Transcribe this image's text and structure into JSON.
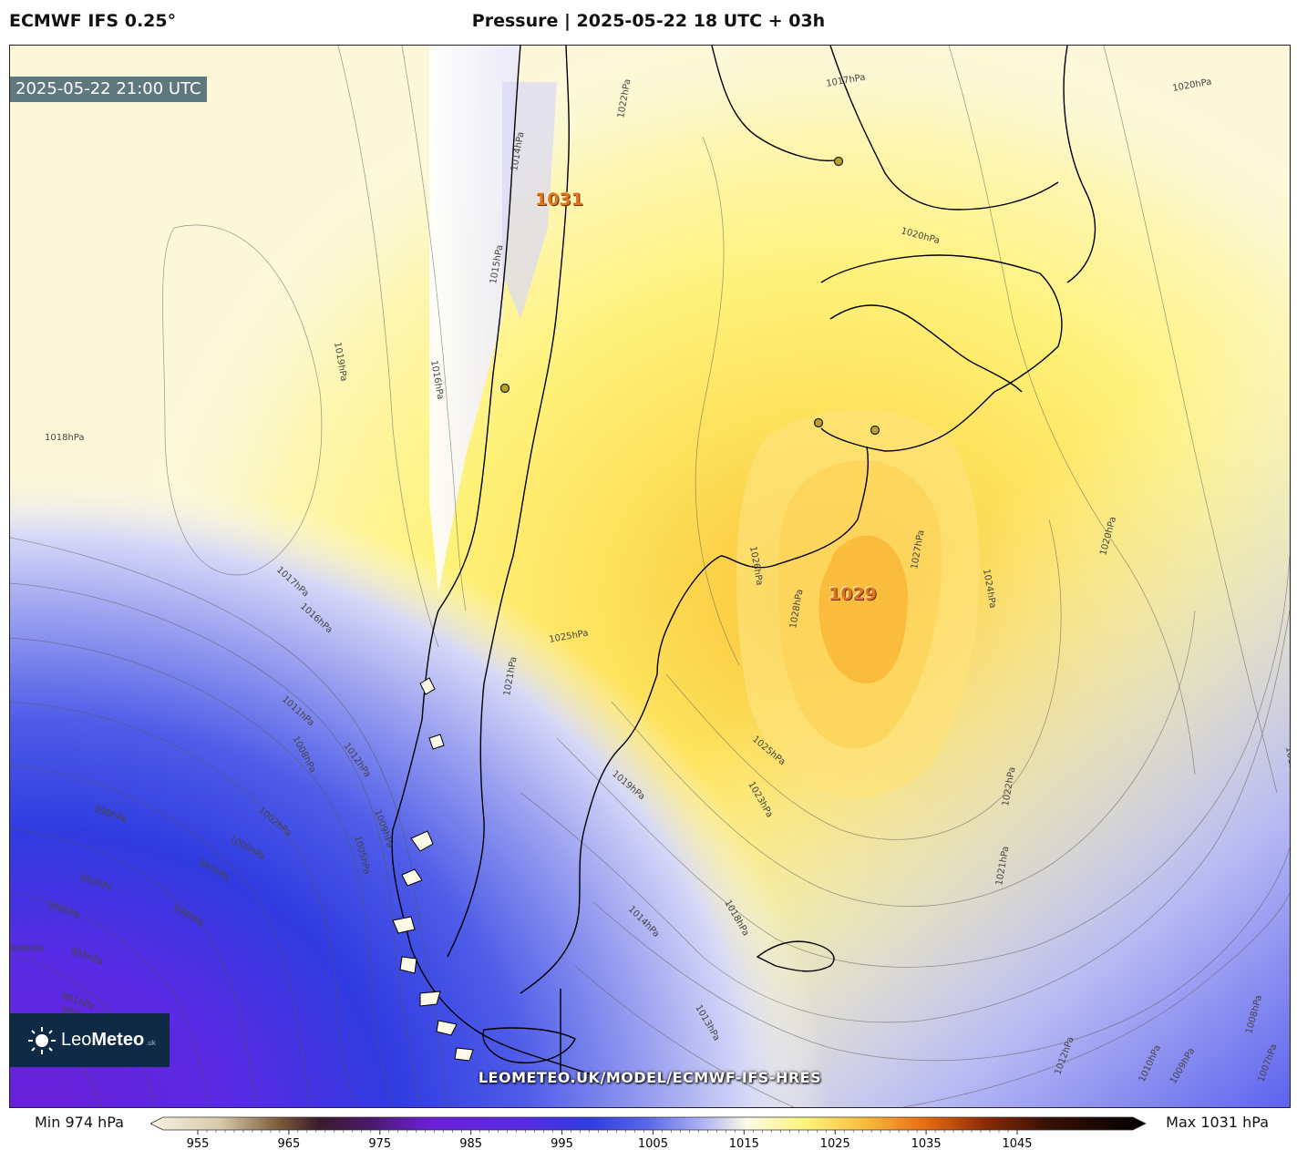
{
  "header": {
    "model": "ECMWF IFS 0.25°",
    "title": "Pressure | 2025-05-22 18 UTC + 03h"
  },
  "map": {
    "valid_time": "2025-05-22 21:00 UTC",
    "watermark": "LEOMETEO.UK/MODEL/ECMWF-IFS-HRES",
    "logo": {
      "name_regular": "Leo",
      "name_bold": "Meteo",
      "suffix": ".uk"
    },
    "high_center_label": "1029",
    "andes_max_label": "1031",
    "isobar_labels": [
      "1018hPa",
      "1019hPa",
      "1016hPa",
      "1017hPa",
      "1016hPa",
      "1015hPa",
      "1014hPa",
      "1011hPa",
      "1012hPa",
      "1008hPa",
      "1009hPa",
      "1005hPa",
      "1002hPa",
      "1000hPa",
      "998hPa",
      "997hPa",
      "994hPa",
      "992hPa",
      "988hPa",
      "985hPa",
      "984hPa",
      "981hPa",
      "980hPa",
      "1020hPa",
      "1025hPa",
      "1021hPa",
      "1019hPa",
      "1023hPa",
      "1025hPa",
      "1026hPa",
      "1027hPa",
      "1028hPa",
      "1024hPa",
      "1022hPa",
      "1021hPa",
      "1020hPa",
      "1018hPa",
      "1014hPa",
      "1013hPa",
      "1012hPa",
      "1010hPa",
      "1009hPa",
      "1007hPa",
      "1011hPa",
      "1008hPa",
      "1022hPa",
      "1017hPa",
      "1020hPa"
    ],
    "palette": {
      "high": "#f7b52e",
      "mid": "#fef27a",
      "neutral": "#fdfbe3",
      "low1": "#9aa0f0",
      "low2": "#2f3be0",
      "low3": "#6a1fd6"
    }
  },
  "colorbar": {
    "min_label": "Min 974 hPa",
    "max_label": "Max 1031 hPa",
    "ticks": [
      "955",
      "965",
      "975",
      "985",
      "995",
      "1005",
      "1015",
      "1025",
      "1035",
      "1045"
    ]
  }
}
